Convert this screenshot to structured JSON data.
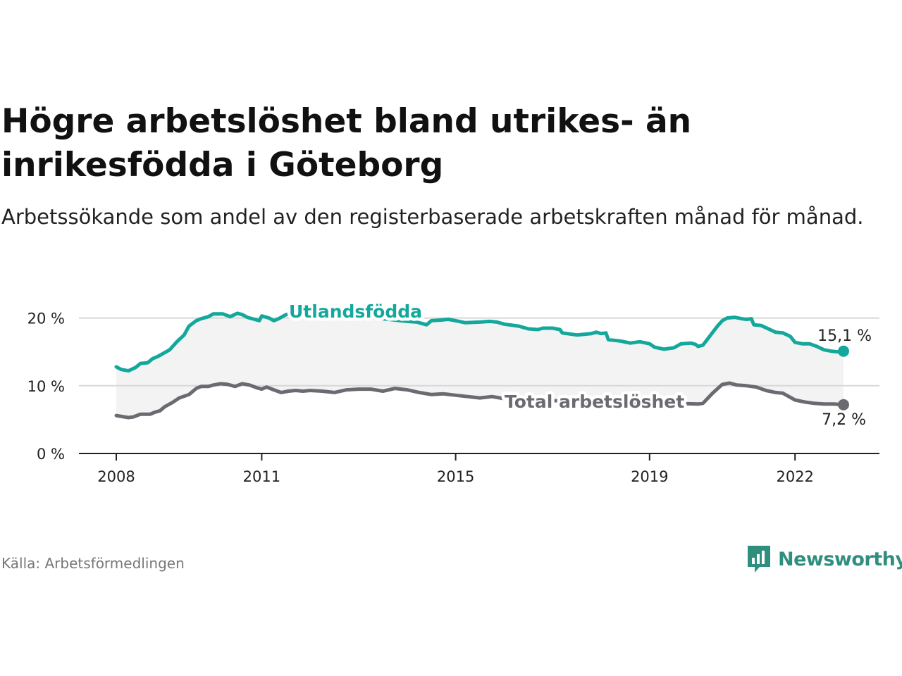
{
  "title": "Högre arbetslöshet bland utrikes- än inrikesfödda i Göteborg",
  "subtitle": "Arbetssökande som andel av den registerbaserade arbetskraften månad för månad.",
  "source": "Källa: Arbetsförmedlingen",
  "brand": {
    "name": "Newsworthy",
    "icon": "bar-chart-speech-bubble-icon"
  },
  "colors": {
    "foreign": "#13a89b",
    "total": "#6c6a70",
    "band": "#f3f3f3",
    "grid": "#d8d8d8",
    "axis": "#222222",
    "brand": "#2f8f7e"
  },
  "chart_data": {
    "type": "line",
    "title": "Högre arbetslöshet bland utrikes- än inrikesfödda i Göteborg",
    "xlabel": "",
    "ylabel": "",
    "xlim": [
      2008.0,
      2023.0
    ],
    "ylim": [
      0,
      20
    ],
    "y_ticks": [
      0,
      10,
      20
    ],
    "y_tick_labels": [
      "0 %",
      "10 %",
      "20 %"
    ],
    "x_ticks": [
      2008,
      2011,
      2015,
      2019,
      2022
    ],
    "x_tick_labels": [
      "2008",
      "2011",
      "2015",
      "2019",
      "2022"
    ],
    "grid": true,
    "series": [
      {
        "name": "Utlandsfödda",
        "end_label": "15,1 %",
        "points": [
          [
            2008.0,
            12.8
          ],
          [
            2008.1,
            12.4
          ],
          [
            2008.25,
            12.2
          ],
          [
            2008.4,
            12.7
          ],
          [
            2008.5,
            13.3
          ],
          [
            2008.65,
            13.4
          ],
          [
            2008.75,
            14.0
          ],
          [
            2008.85,
            14.3
          ],
          [
            2009.0,
            14.9
          ],
          [
            2009.1,
            15.3
          ],
          [
            2009.25,
            16.5
          ],
          [
            2009.4,
            17.5
          ],
          [
            2009.5,
            18.8
          ],
          [
            2009.65,
            19.6
          ],
          [
            2009.75,
            19.9
          ],
          [
            2009.9,
            20.2
          ],
          [
            2010.0,
            20.6
          ],
          [
            2010.2,
            20.6
          ],
          [
            2010.35,
            20.2
          ],
          [
            2010.5,
            20.7
          ],
          [
            2010.6,
            20.5
          ],
          [
            2010.7,
            20.1
          ],
          [
            2010.85,
            19.8
          ],
          [
            2010.95,
            19.6
          ],
          [
            2011.0,
            20.3
          ],
          [
            2011.15,
            20.0
          ],
          [
            2011.25,
            19.6
          ],
          [
            2011.35,
            19.9
          ],
          [
            2011.5,
            20.5
          ],
          [
            2011.65,
            20.7
          ],
          [
            2011.8,
            20.6
          ],
          [
            2012.0,
            20.6
          ],
          [
            2012.25,
            20.5
          ],
          [
            2012.5,
            20.4
          ],
          [
            2012.75,
            20.3
          ],
          [
            2013.0,
            20.2
          ],
          [
            2013.25,
            20.1
          ],
          [
            2013.5,
            19.9
          ],
          [
            2013.75,
            19.7
          ],
          [
            2014.0,
            19.5
          ],
          [
            2014.2,
            19.4
          ],
          [
            2014.3,
            19.2
          ],
          [
            2014.4,
            19.0
          ],
          [
            2014.5,
            19.6
          ],
          [
            2014.7,
            19.7
          ],
          [
            2014.85,
            19.8
          ],
          [
            2015.0,
            19.6
          ],
          [
            2015.2,
            19.3
          ],
          [
            2015.5,
            19.4
          ],
          [
            2015.7,
            19.5
          ],
          [
            2015.85,
            19.4
          ],
          [
            2016.0,
            19.1
          ],
          [
            2016.3,
            18.8
          ],
          [
            2016.5,
            18.4
          ],
          [
            2016.7,
            18.3
          ],
          [
            2016.8,
            18.5
          ],
          [
            2017.0,
            18.5
          ],
          [
            2017.15,
            18.3
          ],
          [
            2017.2,
            17.8
          ],
          [
            2017.5,
            17.5
          ],
          [
            2017.8,
            17.7
          ],
          [
            2017.9,
            17.9
          ],
          [
            2018.0,
            17.7
          ],
          [
            2018.1,
            17.8
          ],
          [
            2018.15,
            16.8
          ],
          [
            2018.4,
            16.6
          ],
          [
            2018.6,
            16.3
          ],
          [
            2018.8,
            16.5
          ],
          [
            2019.0,
            16.2
          ],
          [
            2019.1,
            15.7
          ],
          [
            2019.3,
            15.4
          ],
          [
            2019.5,
            15.6
          ],
          [
            2019.65,
            16.2
          ],
          [
            2019.85,
            16.3
          ],
          [
            2019.95,
            16.1
          ],
          [
            2020.0,
            15.8
          ],
          [
            2020.1,
            16.0
          ],
          [
            2020.25,
            17.4
          ],
          [
            2020.4,
            18.8
          ],
          [
            2020.5,
            19.6
          ],
          [
            2020.6,
            20.0
          ],
          [
            2020.75,
            20.1
          ],
          [
            2020.9,
            19.9
          ],
          [
            2021.0,
            19.8
          ],
          [
            2021.1,
            19.9
          ],
          [
            2021.15,
            19.0
          ],
          [
            2021.3,
            18.9
          ],
          [
            2021.45,
            18.4
          ],
          [
            2021.6,
            17.9
          ],
          [
            2021.75,
            17.8
          ],
          [
            2021.9,
            17.3
          ],
          [
            2022.0,
            16.4
          ],
          [
            2022.15,
            16.2
          ],
          [
            2022.3,
            16.2
          ],
          [
            2022.45,
            15.8
          ],
          [
            2022.6,
            15.3
          ],
          [
            2022.75,
            15.1
          ],
          [
            2022.9,
            15.0
          ],
          [
            2023.0,
            15.1
          ]
        ]
      },
      {
        "name": "Total arbetslöshet",
        "end_label": "7,2 %",
        "points": [
          [
            2008.0,
            5.6
          ],
          [
            2008.25,
            5.3
          ],
          [
            2008.35,
            5.4
          ],
          [
            2008.5,
            5.8
          ],
          [
            2008.7,
            5.8
          ],
          [
            2008.8,
            6.1
          ],
          [
            2008.9,
            6.3
          ],
          [
            2009.0,
            6.9
          ],
          [
            2009.15,
            7.5
          ],
          [
            2009.3,
            8.2
          ],
          [
            2009.5,
            8.7
          ],
          [
            2009.65,
            9.6
          ],
          [
            2009.75,
            9.9
          ],
          [
            2009.9,
            9.9
          ],
          [
            2010.0,
            10.1
          ],
          [
            2010.15,
            10.3
          ],
          [
            2010.3,
            10.2
          ],
          [
            2010.45,
            9.9
          ],
          [
            2010.6,
            10.3
          ],
          [
            2010.75,
            10.1
          ],
          [
            2010.9,
            9.7
          ],
          [
            2011.0,
            9.5
          ],
          [
            2011.1,
            9.8
          ],
          [
            2011.25,
            9.4
          ],
          [
            2011.4,
            9.0
          ],
          [
            2011.55,
            9.2
          ],
          [
            2011.7,
            9.3
          ],
          [
            2011.85,
            9.2
          ],
          [
            2012.0,
            9.3
          ],
          [
            2012.25,
            9.2
          ],
          [
            2012.5,
            9.0
          ],
          [
            2012.75,
            9.4
          ],
          [
            2013.0,
            9.5
          ],
          [
            2013.25,
            9.5
          ],
          [
            2013.5,
            9.2
          ],
          [
            2013.75,
            9.6
          ],
          [
            2014.0,
            9.4
          ],
          [
            2014.25,
            9.0
          ],
          [
            2014.5,
            8.7
          ],
          [
            2014.75,
            8.8
          ],
          [
            2015.0,
            8.6
          ],
          [
            2015.25,
            8.4
          ],
          [
            2015.5,
            8.2
          ],
          [
            2015.75,
            8.4
          ],
          [
            2016.0,
            8.1
          ],
          [
            2016.5,
            7.8
          ],
          [
            2017.0,
            7.8
          ],
          [
            2017.5,
            7.7
          ],
          [
            2018.0,
            7.6
          ],
          [
            2018.5,
            7.5
          ],
          [
            2019.0,
            7.4
          ],
          [
            2019.5,
            7.4
          ],
          [
            2020.0,
            7.3
          ],
          [
            2020.1,
            7.4
          ],
          [
            2020.3,
            8.9
          ],
          [
            2020.5,
            10.2
          ],
          [
            2020.65,
            10.4
          ],
          [
            2020.8,
            10.1
          ],
          [
            2021.0,
            10.0
          ],
          [
            2021.2,
            9.8
          ],
          [
            2021.4,
            9.3
          ],
          [
            2021.6,
            9.0
          ],
          [
            2021.75,
            8.9
          ],
          [
            2021.9,
            8.3
          ],
          [
            2022.0,
            7.9
          ],
          [
            2022.2,
            7.6
          ],
          [
            2022.4,
            7.4
          ],
          [
            2022.6,
            7.3
          ],
          [
            2022.8,
            7.3
          ],
          [
            2023.0,
            7.2
          ]
        ]
      }
    ],
    "band": "Shaded area between Total arbetslöshet and Utlandsfödda"
  }
}
